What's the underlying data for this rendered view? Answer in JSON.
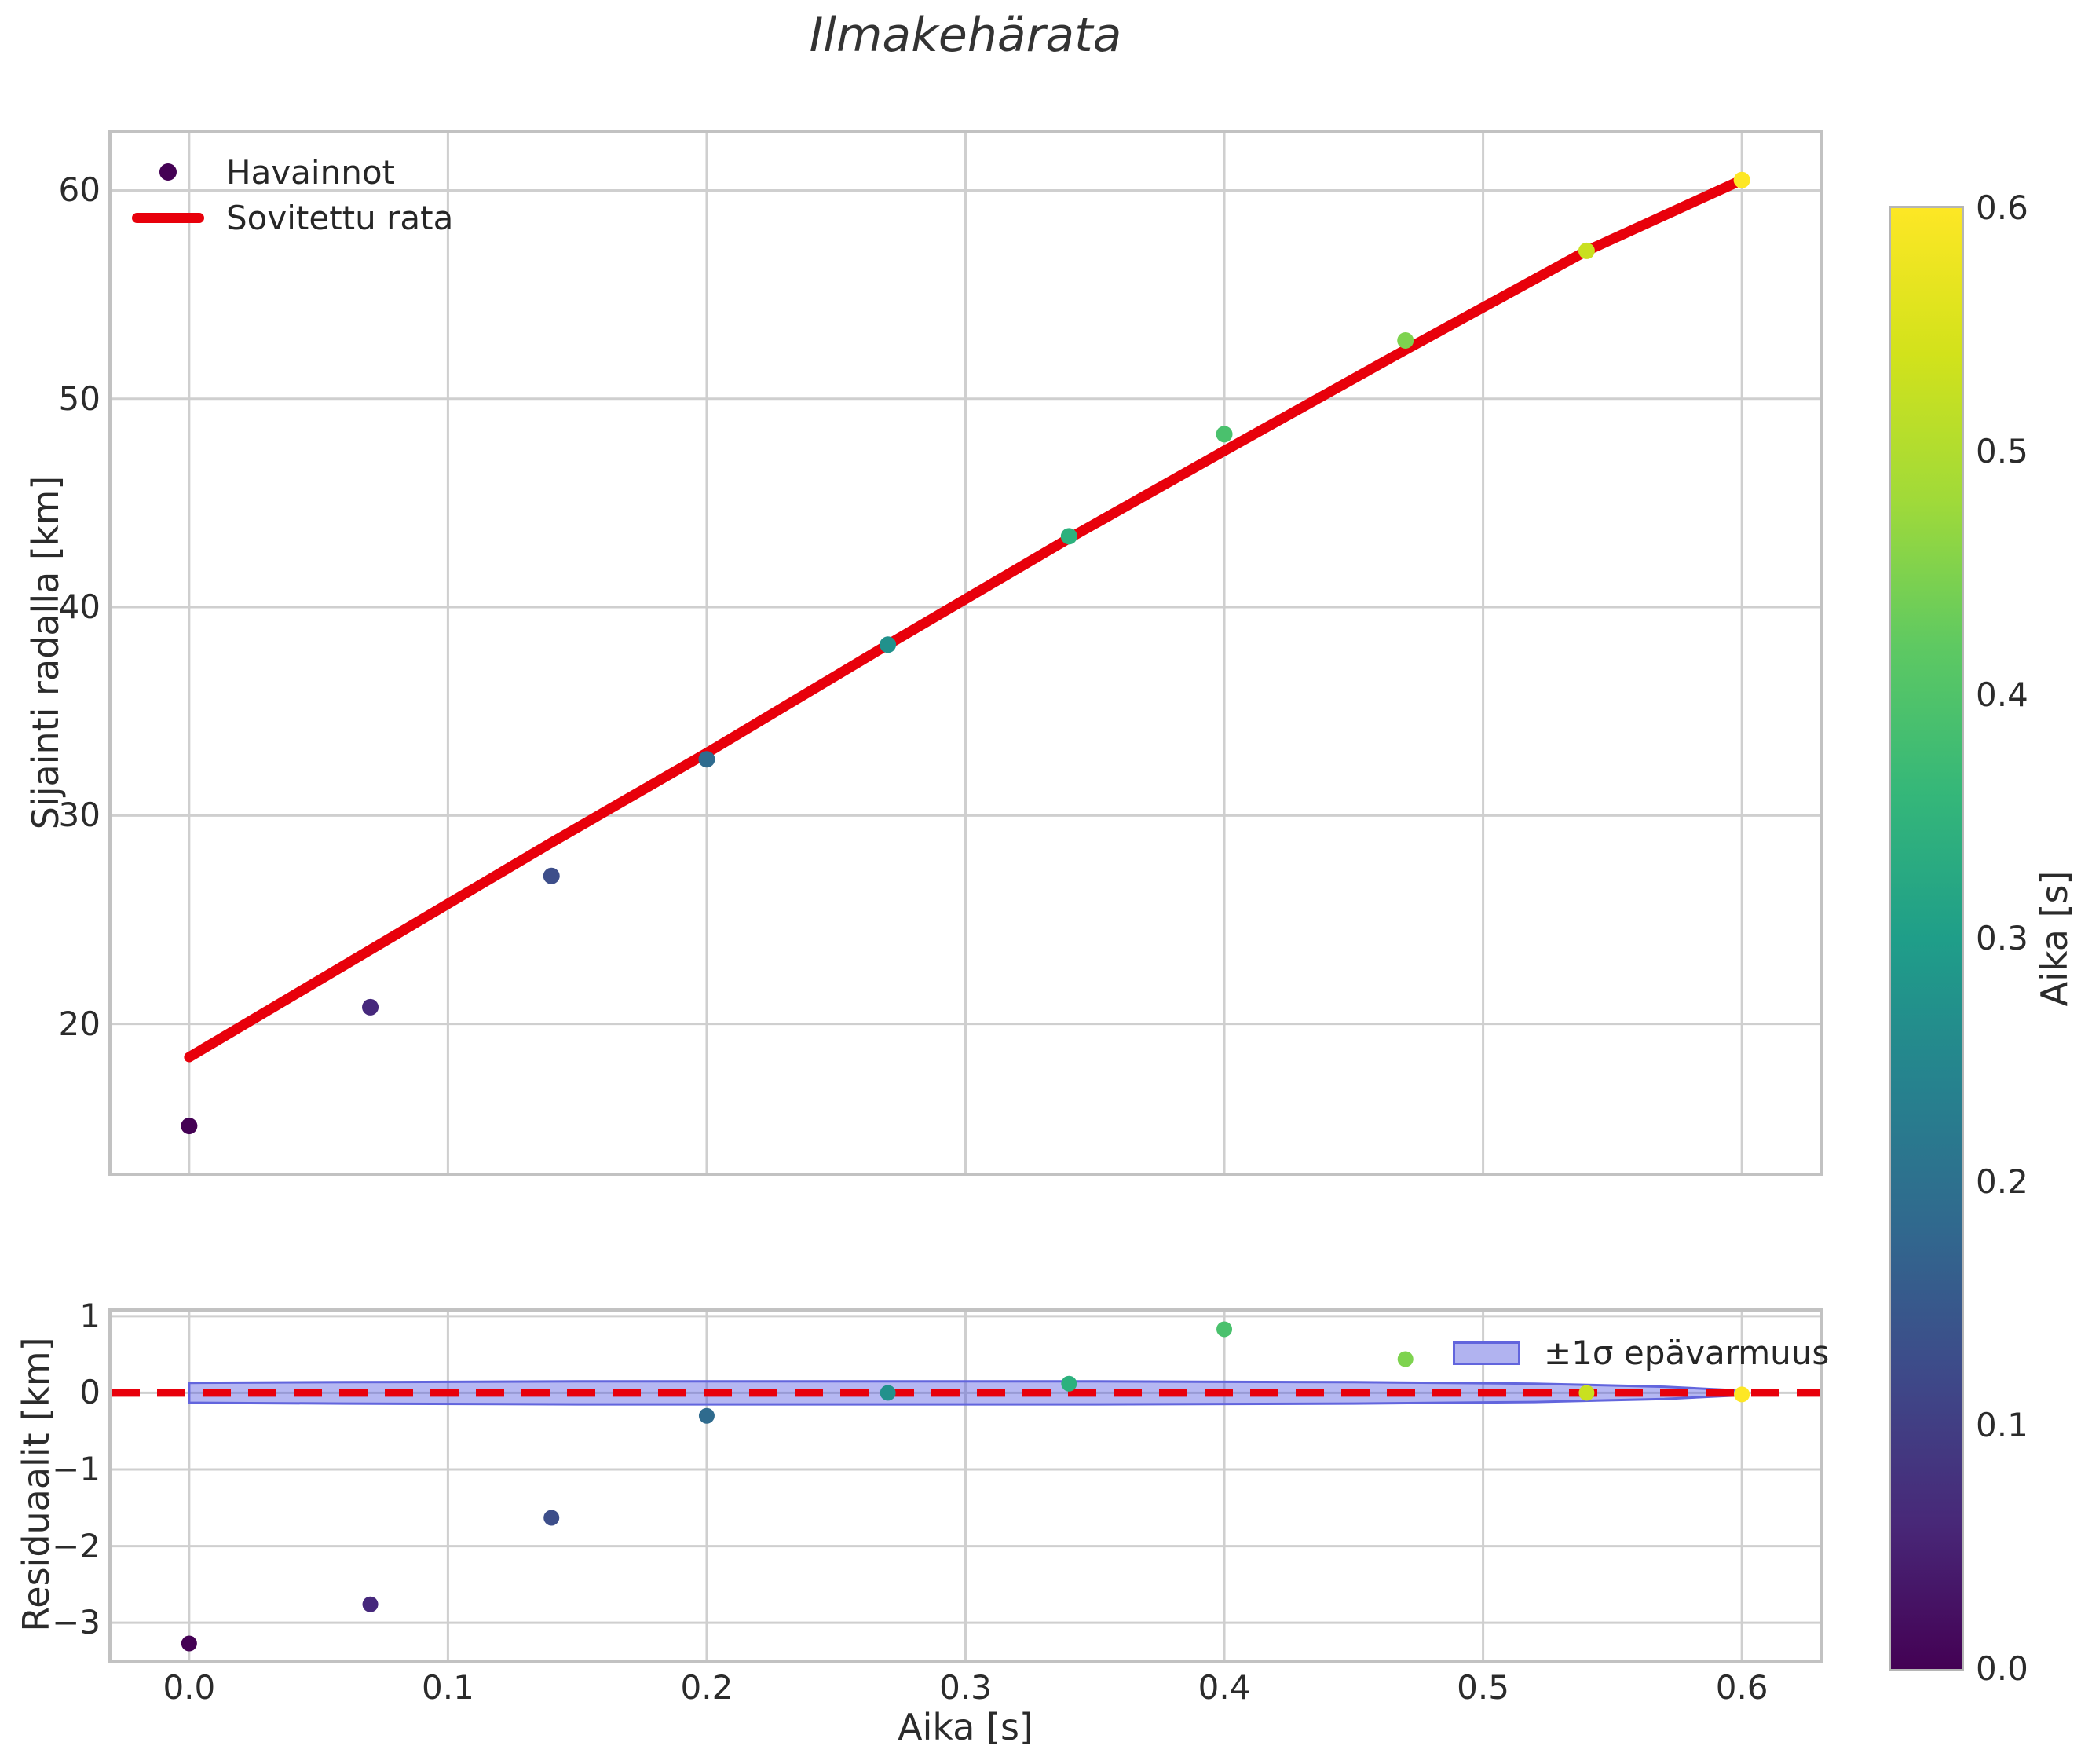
{
  "title": "Ilmakehärata",
  "x_axis": {
    "label": "Aika [s]",
    "tick_labels": [
      "0.0",
      "0.1",
      "0.2",
      "0.3",
      "0.4",
      "0.5",
      "0.6"
    ],
    "tick_values": [
      0.0,
      0.1,
      0.2,
      0.3,
      0.4,
      0.5,
      0.6
    ],
    "lim": [
      -0.03,
      0.63
    ]
  },
  "main_plot": {
    "ylabel": "Sijainti radalla [km]",
    "ytick_labels": [
      "60",
      "50",
      "40",
      "30",
      "20"
    ],
    "ytick_values": [
      60,
      50,
      40,
      30,
      20
    ],
    "ylim": [
      12.86,
      62.77
    ],
    "grid": true,
    "legend": [
      {
        "kind": "marker",
        "label": "Havainnot",
        "color": "#440154"
      },
      {
        "kind": "line",
        "label": "Sovitettu rata",
        "color": "#e8000b"
      }
    ]
  },
  "residual_plot": {
    "ylabel": "Residuaalit [km]",
    "ytick_labels": [
      "1",
      "0",
      "−1",
      "−2",
      "−3"
    ],
    "ytick_values": [
      1,
      0,
      -1,
      -2,
      -3
    ],
    "ylim": [
      -3.48,
      1.06
    ],
    "grid": true,
    "legend": {
      "label": "±1σ epävarmuus",
      "fill": "#b1b3f0",
      "edge": "#6265dd"
    }
  },
  "colorbar": {
    "label": "Aika [s]",
    "tick_labels": [
      "0.0",
      "0.1",
      "0.2",
      "0.3",
      "0.4",
      "0.5",
      "0.6"
    ],
    "tick_values": [
      0.0,
      0.1,
      0.2,
      0.3,
      0.4,
      0.5,
      0.6
    ],
    "lim": [
      0.0,
      0.6
    ],
    "colormap": "viridis",
    "gradient_stops": [
      "#440154",
      "#482878",
      "#3e4989",
      "#31688e",
      "#26828e",
      "#1f9e89",
      "#35b779",
      "#5ec962",
      "#a0da39",
      "#d2e21b",
      "#fde725"
    ]
  },
  "chart_data": [
    {
      "type": "scatter",
      "title": "Ilmakehärata",
      "xlabel": "Aika [s]",
      "ylabel": "Sijainti radalla [km]",
      "x": [
        0.0,
        0.07,
        0.14,
        0.2,
        0.27,
        0.34,
        0.4,
        0.47,
        0.54,
        0.6
      ],
      "y_observed": [
        15.1,
        20.8,
        27.1,
        32.7,
        38.2,
        43.4,
        48.3,
        52.8,
        57.1,
        60.5
      ],
      "y_fit": [
        18.4,
        23.55,
        28.7,
        33.0,
        38.2,
        43.3,
        47.5,
        52.35,
        57.1,
        60.5
      ],
      "point_colors": [
        "#440154",
        "#46287c",
        "#3d4e8a",
        "#2f6b8e",
        "#21918c",
        "#2cb17d",
        "#4ac16d",
        "#7ed34f",
        "#c9e020",
        "#fde725"
      ],
      "line_color": "#e8000b",
      "color_by": "Aika [s]",
      "legend_position": "upper left",
      "xlim": [
        -0.03,
        0.63
      ],
      "ylim": [
        12.86,
        62.77
      ]
    },
    {
      "type": "scatter",
      "ylabel": "Residuaalit [km]",
      "xlabel": "Aika [s]",
      "x": [
        0.0,
        0.07,
        0.14,
        0.2,
        0.27,
        0.34,
        0.4,
        0.47,
        0.54,
        0.6
      ],
      "residuals": [
        -3.27,
        -2.76,
        -1.63,
        -0.3,
        0.0,
        0.12,
        0.83,
        0.44,
        0.0,
        -0.02
      ],
      "point_colors": [
        "#440154",
        "#46287c",
        "#3d4e8a",
        "#2f6b8e",
        "#21918c",
        "#2cb17d",
        "#4ac16d",
        "#7ed34f",
        "#c9e020",
        "#fde725"
      ],
      "zero_line": {
        "value": 0,
        "color": "#e8000b",
        "style": "dashed"
      },
      "band_x": [
        0.0,
        0.06,
        0.15,
        0.25,
        0.35,
        0.45,
        0.52,
        0.57,
        0.6
      ],
      "band_halfwidth": [
        0.13,
        0.14,
        0.15,
        0.15,
        0.15,
        0.14,
        0.12,
        0.08,
        0.03
      ],
      "xlim": [
        -0.03,
        0.63
      ],
      "ylim": [
        -3.48,
        1.06
      ]
    }
  ]
}
